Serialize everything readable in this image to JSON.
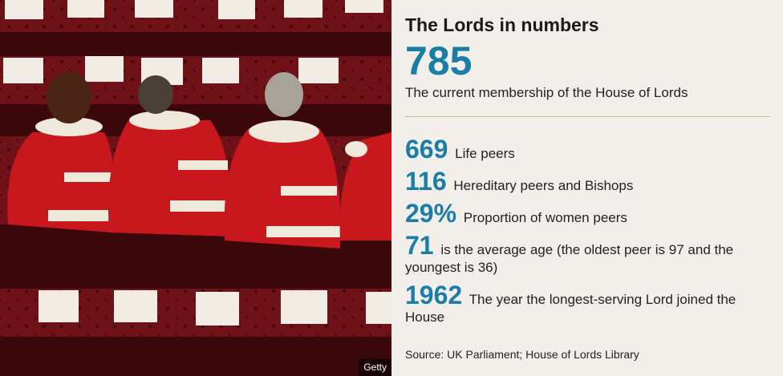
{
  "photo": {
    "credit": "Getty"
  },
  "panel": {
    "title": "The Lords in numbers",
    "headline_number": "785",
    "headline_caption": "The current membership of the House of Lords",
    "stats": [
      {
        "number": "669",
        "text": "Life peers"
      },
      {
        "number": "116",
        "text": "Hereditary peers and Bishops"
      },
      {
        "number": "29%",
        "text": "Proportion of women peers"
      },
      {
        "number": "71",
        "text": "is the average age (the oldest peer is 97 and the youngest is 36)"
      },
      {
        "number": "1962",
        "text": "The year the longest-serving Lord joined the House"
      }
    ],
    "source": "Source: UK Parliament; House of Lords Library"
  },
  "colors": {
    "accent": "#1b7ea6",
    "background": "#f2efeb",
    "divider": "#c7b89c",
    "robe": "#c8181e",
    "bench": "#5a0f14"
  }
}
